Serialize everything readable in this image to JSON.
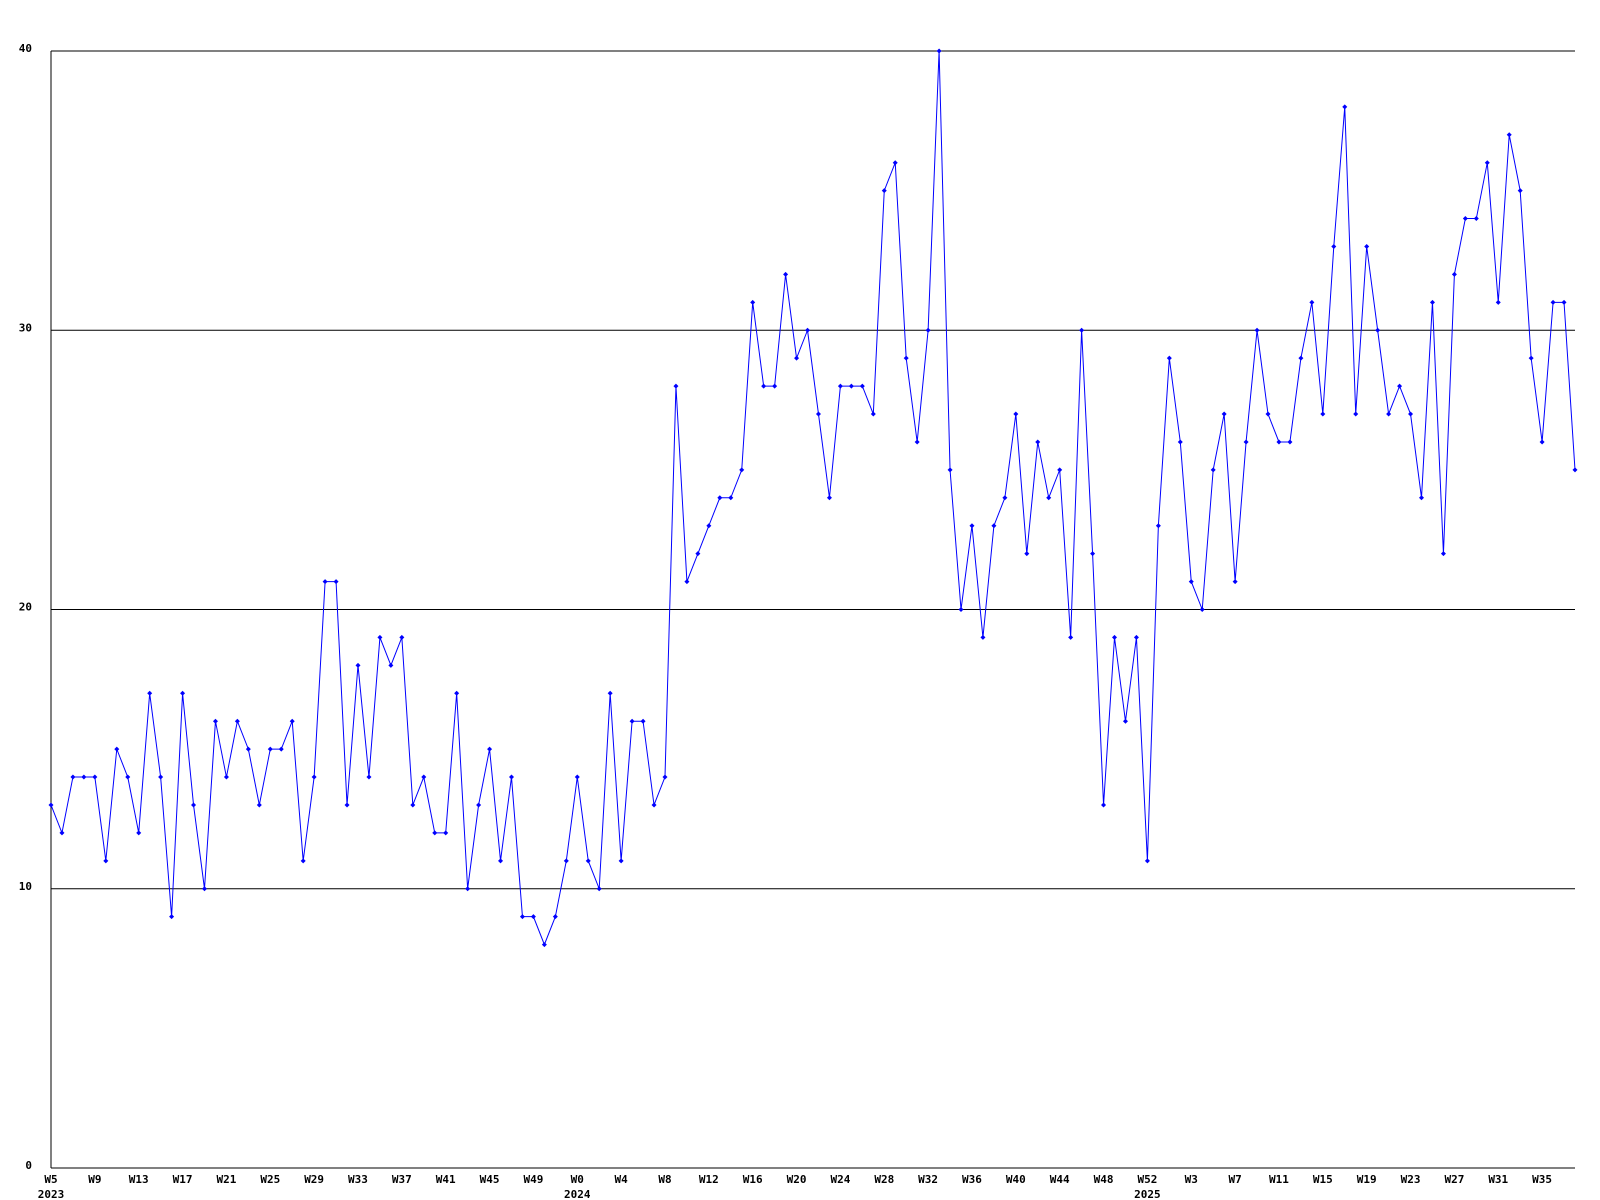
{
  "chart_data": {
    "type": "line",
    "categories": [
      "W5",
      null,
      null,
      null,
      "W9",
      null,
      null,
      null,
      "W13",
      null,
      null,
      null,
      "W17",
      null,
      null,
      null,
      "W21",
      null,
      null,
      null,
      "W25",
      null,
      null,
      null,
      "W29",
      null,
      null,
      null,
      "W33",
      null,
      null,
      null,
      "W37",
      null,
      null,
      null,
      "W41",
      null,
      null,
      null,
      "W45",
      null,
      null,
      null,
      "W49",
      null,
      null,
      null,
      "W0",
      null,
      null,
      null,
      "W4",
      null,
      null,
      null,
      "W8",
      null,
      null,
      null,
      "W12",
      null,
      null,
      null,
      "W16",
      null,
      null,
      null,
      "W20",
      null,
      null,
      null,
      "W24",
      null,
      null,
      null,
      "W28",
      null,
      null,
      null,
      "W32",
      null,
      null,
      null,
      "W36",
      null,
      null,
      null,
      "W40",
      null,
      null,
      null,
      "W44",
      null,
      null,
      null,
      "W48",
      null,
      null,
      null,
      "W52",
      null,
      null,
      null,
      "W3",
      null,
      null,
      null,
      "W7",
      null,
      null,
      null,
      "W11",
      null,
      null,
      null,
      "W15",
      null,
      null,
      null,
      "W19",
      null,
      null,
      null,
      "W23",
      null,
      null,
      null,
      "W27",
      null,
      null,
      null,
      "W31",
      null,
      null,
      null,
      "W35",
      null,
      null,
      null
    ],
    "years": [
      "2023",
      null,
      null,
      null,
      null,
      null,
      null,
      null,
      null,
      null,
      null,
      null,
      null,
      null,
      null,
      null,
      null,
      null,
      null,
      null,
      null,
      null,
      null,
      null,
      null,
      null,
      null,
      null,
      null,
      null,
      null,
      null,
      null,
      null,
      null,
      null,
      null,
      null,
      null,
      null,
      null,
      null,
      null,
      null,
      null,
      null,
      null,
      null,
      "2024",
      null,
      null,
      null,
      null,
      null,
      null,
      null,
      null,
      null,
      null,
      null,
      null,
      null,
      null,
      null,
      null,
      null,
      null,
      null,
      null,
      null,
      null,
      null,
      null,
      null,
      null,
      null,
      null,
      null,
      null,
      null,
      null,
      null,
      null,
      null,
      null,
      null,
      null,
      null,
      null,
      null,
      null,
      null,
      null,
      null,
      null,
      null,
      null,
      null,
      null,
      null,
      "2025",
      null,
      null,
      null,
      null,
      null,
      null,
      null,
      null,
      null,
      null,
      null,
      null,
      null,
      null,
      null,
      null,
      null,
      null,
      null,
      null,
      null,
      null,
      null,
      null,
      null,
      null,
      null,
      null,
      null,
      null,
      null,
      null,
      null,
      null,
      null,
      null,
      null,
      null,
      null
    ],
    "series": [
      {
        "color": "#0000ff",
        "values": [
          13,
          12,
          14,
          14,
          14,
          11,
          15,
          14,
          12,
          17,
          14,
          9,
          17,
          13,
          10,
          16,
          14,
          16,
          15,
          13,
          15,
          15,
          16,
          11,
          14,
          21,
          21,
          13,
          18,
          14,
          19,
          18,
          19,
          13,
          14,
          12,
          12,
          17,
          10,
          13,
          15,
          11,
          14,
          9,
          9,
          8,
          9,
          11,
          14,
          11,
          10,
          17,
          11,
          16,
          16,
          13,
          14,
          28,
          21,
          22,
          23,
          24,
          24,
          25,
          31,
          28,
          28,
          32,
          29,
          30,
          27,
          24,
          28,
          28,
          28,
          27,
          35,
          36,
          29,
          26,
          30,
          40,
          25,
          20,
          23,
          19,
          23,
          24,
          27,
          22,
          26,
          24,
          25,
          19,
          30,
          22,
          13,
          19,
          16,
          19,
          11,
          23,
          29,
          26,
          21,
          20,
          25,
          27,
          21,
          26,
          30,
          27,
          26,
          26,
          29,
          31,
          27,
          33,
          38,
          27,
          33,
          30,
          27,
          28,
          27,
          24,
          31,
          22,
          32,
          34,
          34,
          36,
          31,
          37,
          35,
          29,
          26,
          31,
          31,
          25
        ]
      }
    ],
    "ylim": [
      0,
      40
    ],
    "yticks": [
      0,
      10,
      20,
      30,
      40
    ],
    "grid": true
  }
}
